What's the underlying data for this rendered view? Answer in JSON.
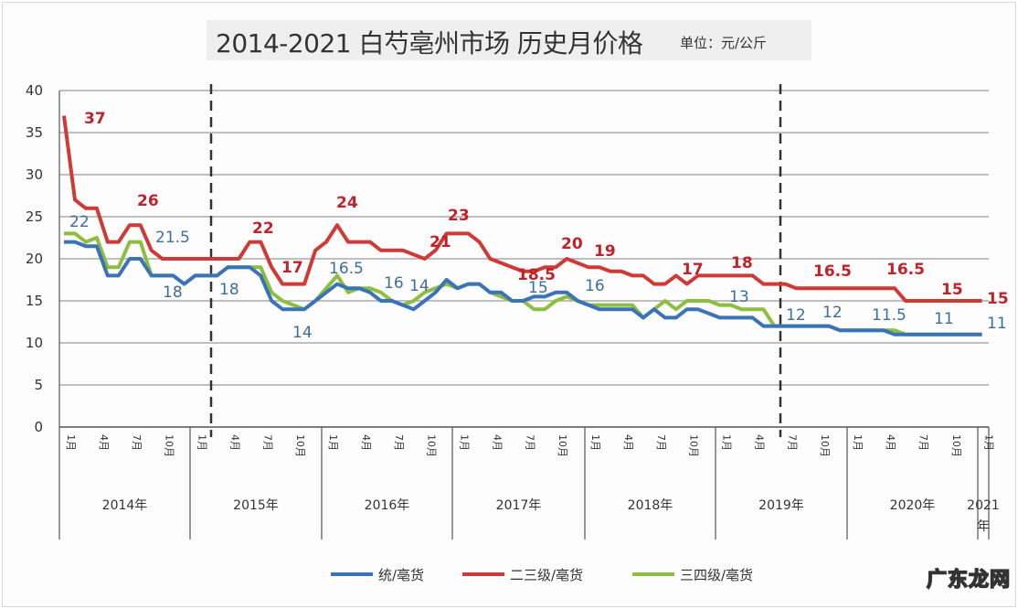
{
  "title": "2014-2021 白芍亳州市场 历史月价格",
  "unit_label": "单位：元/公斤",
  "watermark": "广东龙网",
  "colors": {
    "blue": "#3b73b9",
    "red": "#d03a35",
    "green": "#8cbf3f"
  },
  "legend": [
    {
      "label": "统/亳货",
      "color": "#3b73b9"
    },
    {
      "label": "二三级/亳货",
      "color": "#d03a35"
    },
    {
      "label": "三四级/亳货",
      "color": "#8cbf3f"
    }
  ],
  "y_ticks": [
    "0",
    "5",
    "10",
    "15",
    "20",
    "25",
    "30",
    "35",
    "40"
  ],
  "month_ticks": [
    "1月",
    "4月",
    "7月",
    "10月"
  ],
  "year_labels": [
    "2014年",
    "2015年",
    "2016年",
    "2017年",
    "2018年",
    "2019年",
    "2020年",
    "2021年"
  ],
  "chart_data": {
    "type": "line",
    "title": "2014-2021 白芍亳州市场 历史月价格",
    "subtitle": "单位：元/公斤",
    "xlabel": "",
    "ylabel": "",
    "ylim": [
      0,
      40
    ],
    "yticks": [
      0,
      5,
      10,
      15,
      20,
      25,
      30,
      35,
      40
    ],
    "grid": true,
    "legend_position": "bottom",
    "x_range": "2014年1月 - 2021年1月 (monthly)",
    "vertical_dashed_lines_at": [
      "2015年3月",
      "2019年7月"
    ],
    "series": [
      {
        "name": "统/亳货",
        "color": "#3b73b9",
        "values": [
          22,
          22,
          21.5,
          21.5,
          18,
          18,
          20,
          20,
          18,
          18,
          18,
          17,
          18,
          18,
          18,
          19,
          19,
          19,
          18,
          15,
          14,
          14,
          14,
          15,
          16,
          17,
          16.5,
          16.5,
          16,
          15,
          15,
          14.5,
          14,
          15,
          16,
          17.5,
          16.5,
          17,
          17,
          16,
          16,
          15,
          15,
          15.5,
          15.5,
          16,
          16,
          15,
          14.5,
          14,
          14,
          14,
          14,
          13,
          14,
          13,
          13,
          14,
          14,
          13.5,
          13,
          13,
          13,
          13,
          12,
          12,
          12,
          12,
          12,
          12,
          12,
          11.5,
          11.5,
          11.5,
          11.5,
          11.5,
          11,
          11,
          11,
          11,
          11,
          11,
          11,
          11,
          11
        ]
      },
      {
        "name": "二三级/亳货",
        "color": "#d03a35",
        "values": [
          37,
          27,
          26,
          26,
          22,
          22,
          24,
          24,
          21,
          20,
          20,
          20,
          20,
          20,
          20,
          20,
          20,
          22,
          22,
          19,
          17,
          17,
          17,
          21,
          22,
          24,
          22,
          22,
          22,
          21,
          21,
          21,
          20.5,
          20,
          21,
          23,
          23,
          23,
          22,
          20,
          19.5,
          19,
          18.5,
          18.5,
          19,
          19,
          20,
          19.5,
          19,
          19,
          18.5,
          18.5,
          18,
          18,
          17,
          17,
          18,
          17,
          18,
          18,
          18,
          18,
          18,
          18,
          17,
          17,
          17,
          16.5,
          16.5,
          16.5,
          16.5,
          16.5,
          16.5,
          16.5,
          16.5,
          16.5,
          16.5,
          15,
          15,
          15,
          15,
          15,
          15,
          15,
          15
        ]
      },
      {
        "name": "三四级/亳货",
        "color": "#8cbf3f",
        "values": [
          23,
          23,
          22,
          22.5,
          19,
          19,
          22,
          22,
          18,
          18,
          18,
          17,
          18,
          18,
          18,
          19,
          19,
          19,
          19,
          16,
          15,
          14.5,
          14,
          15,
          16.5,
          18,
          16,
          16.5,
          16.5,
          16,
          15,
          14.5,
          15,
          16,
          16.5,
          17,
          16.5,
          17,
          17,
          16,
          15.5,
          15,
          15,
          14,
          14,
          15,
          15.5,
          15,
          14.5,
          14.5,
          14.5,
          14.5,
          14.5,
          13,
          14,
          15,
          14,
          15,
          15,
          15,
          14.5,
          14.5,
          14,
          14,
          14,
          12,
          12,
          12,
          12,
          12,
          12,
          11.5,
          11.5,
          11.5,
          11.5,
          11.5,
          11.5,
          11,
          11,
          11,
          11,
          11,
          11,
          11,
          11
        ]
      }
    ],
    "data_labels": [
      {
        "series": "二三级/亳货",
        "values": [
          "37",
          "26",
          "22",
          "17",
          "24",
          "21",
          "23",
          "18.5",
          "20",
          "19",
          "17",
          "18",
          "16.5",
          "16.5",
          "15",
          "15"
        ]
      },
      {
        "series": "统/亳货",
        "values": [
          "22",
          "21.5",
          "18",
          "18",
          "14",
          "16.5",
          "16",
          "14",
          "15",
          "16",
          "13",
          "12",
          "12",
          "11.5",
          "11",
          "11"
        ]
      }
    ]
  }
}
